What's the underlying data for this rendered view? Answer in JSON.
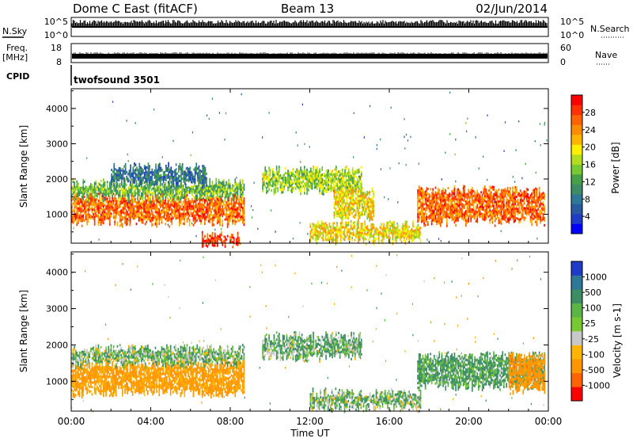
{
  "header": {
    "radar_title": "Dome C East (fitACF)",
    "beam": "Beam 13",
    "date": "02/Jun/2014"
  },
  "strips": {
    "nsky": {
      "label": "N.Sky",
      "top_tick": "10^5",
      "bottom_tick": "10^0"
    },
    "nsearch": {
      "label": "N.Search",
      "top_tick": "10^5",
      "bottom_tick": "10^0"
    },
    "freq": {
      "label_line1": "Freq.",
      "label_line2": "[MHz]",
      "top_tick": "18",
      "bottom_tick": "8"
    },
    "nave": {
      "label": "Nave",
      "top_tick": "60",
      "bottom_tick": "0"
    },
    "cpid": {
      "label": "CPID",
      "value": "twofsound 3501"
    }
  },
  "chart_data": [
    {
      "type": "heatmap",
      "title": "",
      "xlabel": "",
      "ylabel": "Slant Range [km]",
      "xlim": [
        0,
        24
      ],
      "ylim": [
        180,
        4560
      ],
      "yticks": [
        1000,
        2000,
        3000,
        4000
      ],
      "colorbar": {
        "label": "Power [dB]",
        "range": [
          0,
          32
        ],
        "ticks": [
          "4",
          "8",
          "12",
          "16",
          "20",
          "24",
          "28"
        ],
        "colors": [
          "#0000ff",
          "#1e3cc8",
          "#285aa0",
          "#2d7896",
          "#3c8c64",
          "#46a046",
          "#78c832",
          "#b4dc1e",
          "#fff000",
          "#ffb400",
          "#ff8c00",
          "#ff6400",
          "#ff3200",
          "#ff0000"
        ]
      },
      "regions": [
        {
          "t": [
            0.0,
            8.7
          ],
          "r": [
            800,
            1500
          ],
          "value": 26
        },
        {
          "t": [
            0.0,
            8.7
          ],
          "r": [
            1500,
            1900
          ],
          "value": 14
        },
        {
          "t": [
            2.0,
            6.8
          ],
          "r": [
            1900,
            2350
          ],
          "value": 8
        },
        {
          "t": [
            9.6,
            14.6
          ],
          "r": [
            1700,
            2250
          ],
          "value": 16
        },
        {
          "t": [
            13.2,
            15.2
          ],
          "r": [
            900,
            1700
          ],
          "value": 20
        },
        {
          "t": [
            12.0,
            17.6
          ],
          "r": [
            300,
            700
          ],
          "value": 20
        },
        {
          "t": [
            17.4,
            23.8
          ],
          "r": [
            800,
            1700
          ],
          "value": 26
        },
        {
          "t": [
            6.5,
            8.5
          ],
          "r": [
            200,
            400
          ],
          "value": 28
        }
      ]
    },
    {
      "type": "heatmap",
      "title": "",
      "xlabel": "Time UT",
      "ylabel": "Slant Range [km]",
      "xlim": [
        0,
        24
      ],
      "ylim": [
        180,
        4560
      ],
      "yticks": [
        1000,
        2000,
        3000,
        4000
      ],
      "xticks": [
        "00:00",
        "04:00",
        "08:00",
        "12:00",
        "16:00",
        "20:00",
        "00:00"
      ],
      "colorbar": {
        "label": "Velocity [m s-1]",
        "ticks": [
          "1000",
          "500",
          "100",
          "25",
          "-25",
          "-100",
          "-500",
          "-1000"
        ],
        "colors": [
          "#1e3cc8",
          "#2d7896",
          "#3c8c64",
          "#5ab446",
          "#78c832",
          "#c8c8c8",
          "#ffb400",
          "#ff9600",
          "#ff6400",
          "#ff0000"
        ]
      },
      "regions": [
        {
          "t": [
            0.0,
            8.7
          ],
          "r": [
            700,
            1500
          ],
          "value": -150
        },
        {
          "t": [
            0.0,
            8.7
          ],
          "r": [
            1500,
            1900
          ],
          "value": 60
        },
        {
          "t": [
            9.6,
            14.6
          ],
          "r": [
            1700,
            2250
          ],
          "value": 80
        },
        {
          "t": [
            17.4,
            23.8
          ],
          "r": [
            900,
            1700
          ],
          "value": 120
        },
        {
          "t": [
            12.0,
            17.6
          ],
          "r": [
            300,
            700
          ],
          "value": 60
        },
        {
          "t": [
            22.0,
            23.8
          ],
          "r": [
            800,
            1700
          ],
          "value": -200
        }
      ]
    }
  ]
}
